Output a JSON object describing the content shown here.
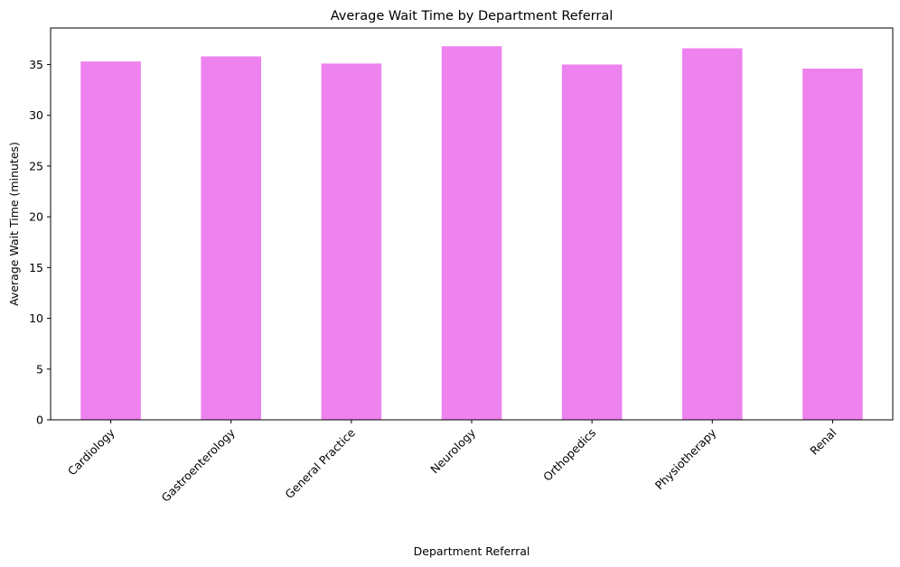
{
  "chart_data": {
    "type": "bar",
    "title": "Average Wait Time by Department Referral",
    "xlabel": "Department Referral",
    "ylabel": "Average Wait Time (minutes)",
    "categories": [
      "Cardiology",
      "Gastroenterology",
      "General Practice",
      "Neurology",
      "Orthopedics",
      "Physiotherapy",
      "Renal"
    ],
    "values": [
      35.3,
      35.8,
      35.1,
      36.8,
      35.0,
      36.6,
      34.6
    ],
    "ylim": [
      0,
      38.6
    ],
    "yticks": [
      "0",
      "5",
      "10",
      "15",
      "20",
      "25",
      "30",
      "35"
    ],
    "bar_color": "#ee82ee",
    "grid": false,
    "legend": "none"
  }
}
